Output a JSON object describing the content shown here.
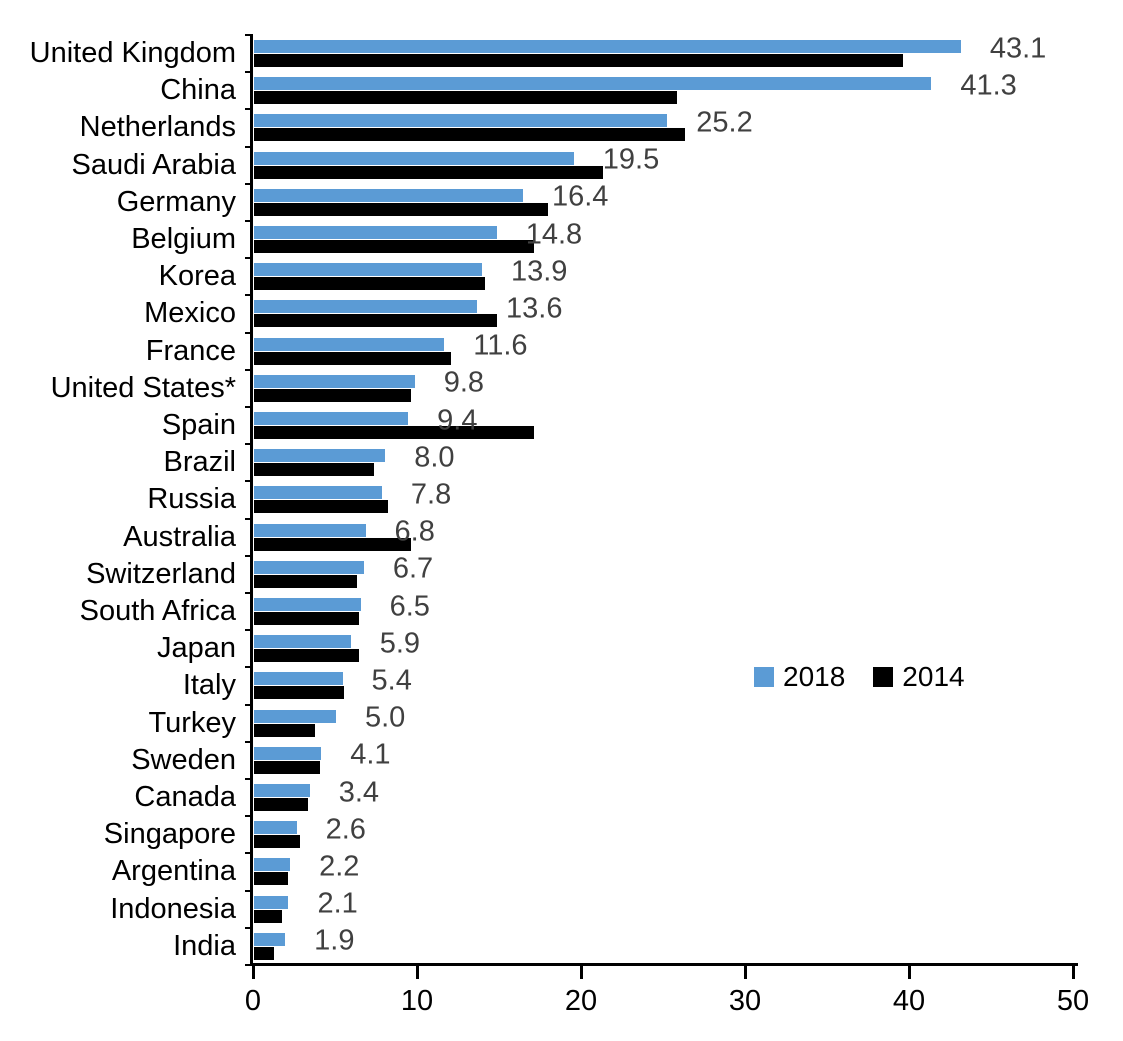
{
  "chart_data": {
    "type": "bar",
    "orientation": "horizontal",
    "title": "",
    "xlabel": "",
    "ylabel": "",
    "xlim": [
      0,
      50
    ],
    "x_ticks": [
      "0",
      "10",
      "20",
      "30",
      "40",
      "50"
    ],
    "grid": false,
    "legend_position": "middle-right",
    "categories": [
      "United Kingdom",
      "China",
      "Netherlands",
      "Saudi Arabia",
      "Germany",
      "Belgium",
      "Korea",
      "Mexico",
      "France",
      "United States*",
      "Spain",
      "Brazil",
      "Russia",
      "Australia",
      "Switzerland",
      "South Africa",
      "Japan",
      "Italy",
      "Turkey",
      "Sweden",
      "Canada",
      "Singapore",
      "Argentina",
      "Indonesia",
      "India"
    ],
    "series": [
      {
        "name": "2018",
        "color": "#5b9bd5",
        "values": [
          43.1,
          41.3,
          25.2,
          19.5,
          16.4,
          14.8,
          13.9,
          13.6,
          11.6,
          9.8,
          9.4,
          8.0,
          7.8,
          6.8,
          6.7,
          6.5,
          5.9,
          5.4,
          5.0,
          4.1,
          3.4,
          2.6,
          2.2,
          2.1,
          1.9
        ]
      },
      {
        "name": "2014",
        "color": "#000000",
        "values": [
          39.6,
          25.8,
          26.3,
          21.3,
          17.9,
          17.1,
          14.1,
          14.8,
          12.0,
          9.6,
          17.1,
          7.3,
          8.2,
          9.6,
          6.3,
          6.4,
          6.4,
          5.5,
          3.7,
          4.0,
          3.3,
          2.8,
          2.1,
          1.7,
          1.2
        ]
      }
    ],
    "value_labels": [
      "43.1",
      "41.3",
      "25.2",
      "19.5",
      "16.4",
      "14.8",
      "13.9",
      "13.6",
      "11.6",
      "9.8",
      "9.4",
      "8.0",
      "7.8",
      "6.8",
      "6.7",
      "6.5",
      "5.9",
      "5.4",
      "5.0",
      "4.1",
      "3.4",
      "2.6",
      "2.2",
      "2.1",
      "1.9"
    ],
    "value_label_series": "2018",
    "value_label_color": "#404040",
    "axis_color": "#000000"
  }
}
